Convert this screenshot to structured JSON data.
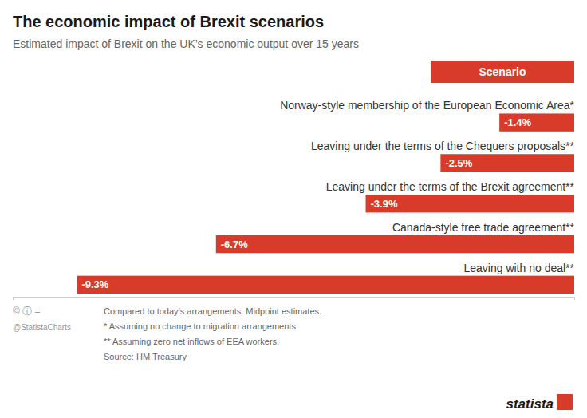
{
  "chart_data": {
    "type": "bar",
    "orientation": "horizontal",
    "title": "The economic impact of Brexit scenarios",
    "subtitle": "Estimated impact of Brexit on the UK’s economic output over 15 years",
    "categories": [
      "Norway-style membership of the European Economic Area*",
      "Leaving under the terms of the Chequers proposals**",
      "Leaving under the terms of the Brexit agreement**",
      "Canada-style free trade agreement**",
      "Leaving with no deal**"
    ],
    "values": [
      -1.4,
      -2.5,
      -3.9,
      -6.7,
      -9.3
    ],
    "value_labels": [
      "-1.4%",
      "-2.5%",
      "-3.9%",
      "-6.7%",
      "-9.3%"
    ],
    "data_labels": true,
    "color": "#d93b2b",
    "xlim": [
      -10.5,
      0
    ],
    "tick_labels": false,
    "grid": false,
    "annotations": [
      "Scenario",
      "Compared to today’s arrangements. Midpoint estimates.",
      "*  Assuming no change to migration arrangements.",
      "** Assuming zero net inflows of EEA workers.",
      "Source: HM Treasury",
      "© ⓘ =",
      "@StatistaCharts",
      "statista"
    ]
  }
}
